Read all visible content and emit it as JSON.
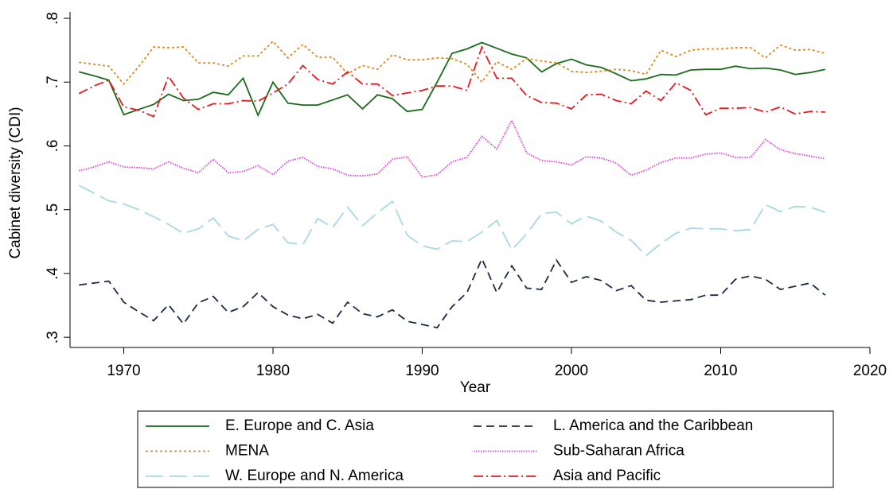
{
  "chart_data": {
    "type": "line",
    "x_label": "Year",
    "y_label": "Cabinet diversity (CDI)",
    "x": [
      1967,
      1968,
      1969,
      1970,
      1971,
      1972,
      1973,
      1974,
      1975,
      1976,
      1977,
      1978,
      1979,
      1980,
      1981,
      1982,
      1983,
      1984,
      1985,
      1986,
      1987,
      1988,
      1989,
      1990,
      1991,
      1992,
      1993,
      1994,
      1995,
      1996,
      1997,
      1998,
      1999,
      2000,
      2001,
      2002,
      2003,
      2004,
      2005,
      2006,
      2007,
      2008,
      2009,
      2010,
      2011,
      2012,
      2013,
      2014,
      2015,
      2016,
      2017
    ],
    "xlim": [
      1966.4,
      2020
    ],
    "xticks": [
      1970,
      1980,
      1990,
      2000,
      2010,
      2020
    ],
    "ylim": [
      0.284,
      0.81
    ],
    "yticks": [
      {
        "value": 0.3,
        "label": ".3"
      },
      {
        "value": 0.4,
        "label": ".4"
      },
      {
        "value": 0.5,
        "label": ".5"
      },
      {
        "value": 0.6,
        "label": ".6"
      },
      {
        "value": 0.7,
        "label": ".7"
      },
      {
        "value": 0.8,
        "label": ".8"
      }
    ],
    "grid": false,
    "legend": "bottom",
    "series": [
      {
        "name": "E. Europe and C. Asia",
        "color": "#1a6b1a",
        "dash": "solid",
        "values": [
          0.716,
          0.71,
          0.703,
          0.649,
          0.657,
          0.665,
          0.681,
          0.671,
          0.673,
          0.684,
          0.68,
          0.706,
          0.648,
          0.7,
          0.667,
          0.664,
          0.664,
          0.672,
          0.68,
          0.658,
          0.68,
          0.674,
          0.654,
          0.657,
          0.7,
          0.745,
          0.752,
          0.762,
          0.753,
          0.744,
          0.738,
          0.716,
          0.729,
          0.736,
          0.727,
          0.723,
          0.713,
          0.702,
          0.705,
          0.712,
          0.711,
          0.719,
          0.72,
          0.72,
          0.725,
          0.721,
          0.722,
          0.719,
          0.712,
          0.715,
          0.72
        ]
      },
      {
        "name": "L. America and the Caribbean",
        "color": "#1c2a4a",
        "dash": "dash",
        "values": [
          0.382,
          0.385,
          0.388,
          0.355,
          0.34,
          0.326,
          0.351,
          0.321,
          0.354,
          0.364,
          0.339,
          0.348,
          0.37,
          0.348,
          0.335,
          0.329,
          0.336,
          0.322,
          0.355,
          0.337,
          0.332,
          0.343,
          0.325,
          0.32,
          0.315,
          0.348,
          0.37,
          0.423,
          0.37,
          0.412,
          0.377,
          0.375,
          0.421,
          0.386,
          0.395,
          0.389,
          0.373,
          0.381,
          0.358,
          0.355,
          0.357,
          0.359,
          0.366,
          0.366,
          0.391,
          0.396,
          0.391,
          0.375,
          0.38,
          0.385,
          0.366
        ]
      },
      {
        "name": "MENA",
        "color": "#e08a1e",
        "dash": "dot",
        "values": [
          0.731,
          0.728,
          0.725,
          0.697,
          0.724,
          0.755,
          0.754,
          0.755,
          0.73,
          0.73,
          0.725,
          0.741,
          0.741,
          0.764,
          0.738,
          0.759,
          0.739,
          0.739,
          0.713,
          0.726,
          0.72,
          0.743,
          0.735,
          0.735,
          0.738,
          0.737,
          0.728,
          0.7,
          0.732,
          0.72,
          0.737,
          0.733,
          0.73,
          0.717,
          0.715,
          0.717,
          0.72,
          0.718,
          0.712,
          0.75,
          0.74,
          0.75,
          0.752,
          0.752,
          0.754,
          0.754,
          0.738,
          0.758,
          0.75,
          0.751,
          0.745
        ]
      },
      {
        "name": "Sub-Saharan Africa",
        "color": "#e040e0",
        "dash": "finedot",
        "values": [
          0.561,
          0.567,
          0.575,
          0.567,
          0.566,
          0.564,
          0.575,
          0.565,
          0.558,
          0.579,
          0.558,
          0.56,
          0.569,
          0.555,
          0.576,
          0.582,
          0.568,
          0.564,
          0.554,
          0.553,
          0.556,
          0.579,
          0.583,
          0.551,
          0.555,
          0.575,
          0.582,
          0.615,
          0.595,
          0.64,
          0.589,
          0.577,
          0.575,
          0.57,
          0.583,
          0.581,
          0.573,
          0.554,
          0.562,
          0.574,
          0.581,
          0.581,
          0.587,
          0.589,
          0.582,
          0.582,
          0.61,
          0.594,
          0.588,
          0.584,
          0.58
        ]
      },
      {
        "name": "W. Europe and N. America",
        "color": "#a8d8e8",
        "dash": "longdash",
        "values": [
          0.538,
          0.526,
          0.514,
          0.509,
          0.5,
          0.489,
          0.477,
          0.463,
          0.47,
          0.487,
          0.459,
          0.451,
          0.469,
          0.477,
          0.448,
          0.445,
          0.486,
          0.472,
          0.504,
          0.475,
          0.495,
          0.513,
          0.46,
          0.443,
          0.438,
          0.451,
          0.45,
          0.465,
          0.483,
          0.437,
          0.462,
          0.494,
          0.496,
          0.478,
          0.49,
          0.482,
          0.465,
          0.452,
          0.428,
          0.447,
          0.463,
          0.471,
          0.47,
          0.47,
          0.467,
          0.469,
          0.508,
          0.497,
          0.505,
          0.504,
          0.496
        ]
      },
      {
        "name": "Asia and Pacific",
        "color": "#e8191e",
        "dash": "dashdot",
        "values": [
          0.682,
          0.694,
          0.703,
          0.661,
          0.656,
          0.646,
          0.709,
          0.675,
          0.657,
          0.666,
          0.666,
          0.671,
          0.67,
          0.683,
          0.697,
          0.726,
          0.704,
          0.697,
          0.716,
          0.697,
          0.697,
          0.679,
          0.683,
          0.687,
          0.694,
          0.694,
          0.687,
          0.755,
          0.706,
          0.706,
          0.679,
          0.668,
          0.667,
          0.658,
          0.68,
          0.681,
          0.671,
          0.666,
          0.686,
          0.671,
          0.699,
          0.687,
          0.649,
          0.659,
          0.659,
          0.66,
          0.653,
          0.661,
          0.65,
          0.654,
          0.653
        ]
      }
    ]
  }
}
